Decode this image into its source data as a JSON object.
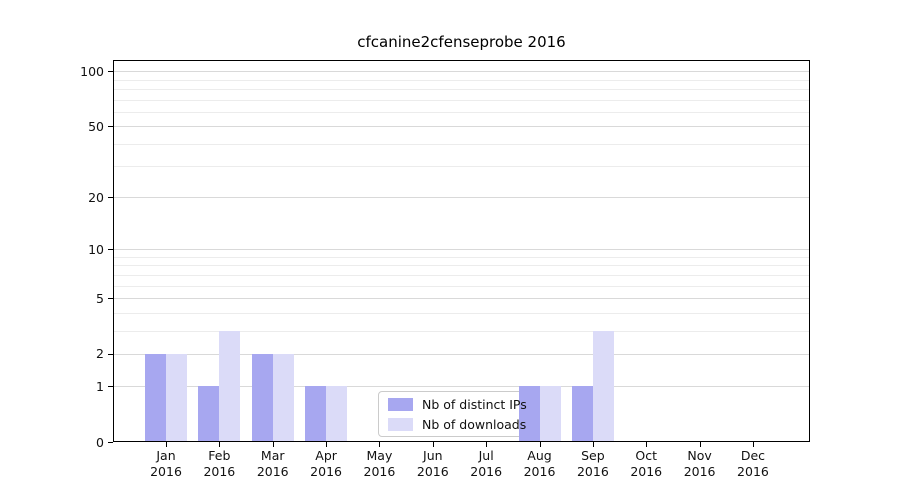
{
  "figure": {
    "background": "#ffffff"
  },
  "chart_data": {
    "type": "bar",
    "title": "cfcanine2cfenseprobe 2016",
    "categories": [
      "Jan",
      "Feb",
      "Mar",
      "Apr",
      "May",
      "Jun",
      "Jul",
      "Aug",
      "Sep",
      "Oct",
      "Nov",
      "Dec"
    ],
    "category_year": "2016",
    "series": [
      {
        "name": "Nb of distinct IPs",
        "color": "#a7a7f0",
        "values": [
          2,
          1,
          2,
          1,
          0,
          0,
          0,
          1,
          1,
          0,
          0,
          0
        ]
      },
      {
        "name": "Nb of downloads",
        "color": "#dbdbf8",
        "values": [
          2,
          3,
          2,
          1,
          0,
          0,
          0,
          1,
          3,
          0,
          0,
          0
        ]
      }
    ],
    "y_axis": {
      "scale": "log1p",
      "major_ticks": [
        0,
        1,
        2,
        5,
        10,
        20,
        50,
        100
      ],
      "minor_ticks": [
        3,
        4,
        6,
        7,
        8,
        9,
        30,
        40,
        60,
        70,
        80,
        90
      ],
      "ylim": [
        0,
        114
      ]
    },
    "x_axis": {
      "tick_label_lines": 2
    },
    "grid": {
      "enabled": true,
      "major_color": "#d9d9d9",
      "minor_color": "#ececec"
    },
    "legend": {
      "position": "lower center",
      "border_color": "#cbcbcb",
      "background": "#ffffff"
    },
    "axis_color": "#000000",
    "text_color": "#111111"
  }
}
